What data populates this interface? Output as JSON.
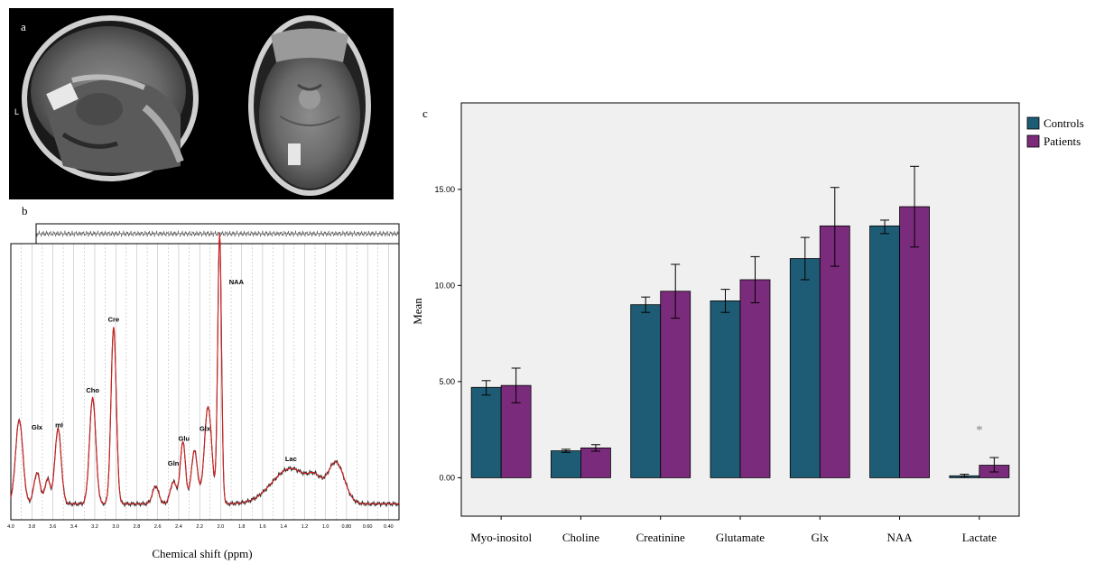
{
  "panels": {
    "a": "a",
    "b": "b",
    "c": "c"
  },
  "mri": {
    "side_marker": "L"
  },
  "spectrum": {
    "xlabel": "Chemical shift (ppm)",
    "ticks": [
      "4.0",
      "3.8",
      "3.6",
      "3.4",
      "3.2",
      "3.0",
      "2.8",
      "2.6",
      "2.4",
      "2.2",
      "2.0",
      "1.8",
      "1.6",
      "1.4",
      "1.2",
      "1.0",
      "0.80",
      "0.60",
      "0.40"
    ],
    "peak_labels": [
      {
        "text": "Glx",
        "ppm": 3.75
      },
      {
        "text": "mI",
        "ppm": 3.54
      },
      {
        "text": "Cho",
        "ppm": 3.22
      },
      {
        "text": "Cre",
        "ppm": 3.02
      },
      {
        "text": "Gln",
        "ppm": 2.45
      },
      {
        "text": "Glu",
        "ppm": 2.35
      },
      {
        "text": "Glx",
        "ppm": 2.15
      },
      {
        "text": "NAA",
        "ppm": 1.85
      },
      {
        "text": "Lac",
        "ppm": 1.33
      }
    ],
    "colors": {
      "fit": "#d42020",
      "data": "#333333"
    }
  },
  "chart_data": {
    "type": "bar",
    "title": "",
    "xlabel": "",
    "ylabel": "Mean",
    "ylim": [
      -2.0,
      19.5
    ],
    "yticks": [
      "0.00",
      "5.00",
      "10.00",
      "15.00"
    ],
    "categories": [
      "Myo-inositol",
      "Choline",
      "Creatinine",
      "Glutamate",
      "Glx",
      "NAA",
      "Lactate"
    ],
    "series": [
      {
        "name": "Controls",
        "color": "#1e5c75",
        "values": [
          4.7,
          1.4,
          9.0,
          9.2,
          11.4,
          13.1,
          0.1
        ],
        "error_low": [
          4.3,
          1.32,
          8.6,
          8.6,
          10.3,
          12.7,
          0.02
        ],
        "error_high": [
          5.05,
          1.48,
          9.4,
          9.8,
          12.5,
          13.4,
          0.18
        ]
      },
      {
        "name": "Patients",
        "color": "#7b2b7c",
        "values": [
          4.8,
          1.55,
          9.7,
          10.3,
          13.1,
          14.1,
          0.65
        ],
        "error_low": [
          3.9,
          1.38,
          8.3,
          9.1,
          11.0,
          12.0,
          0.3
        ],
        "error_high": [
          5.7,
          1.72,
          11.1,
          11.5,
          15.1,
          16.2,
          1.05
        ]
      }
    ],
    "legend_position": "top-right",
    "annotations": [
      {
        "text": "*",
        "category": "Lactate",
        "y": 2.65
      }
    ]
  }
}
